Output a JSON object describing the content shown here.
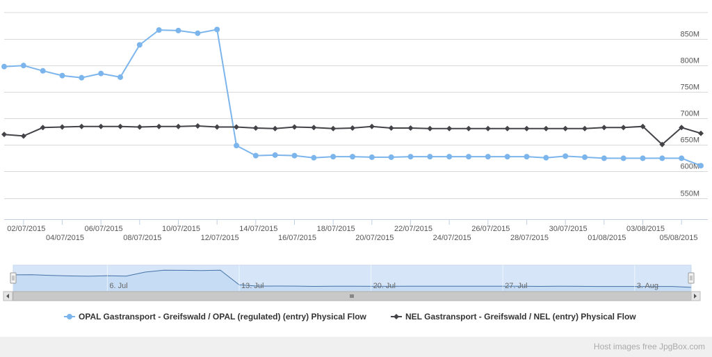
{
  "chart_data": {
    "type": "line",
    "title": "",
    "xlabel": "",
    "ylabel": "",
    "x": [
      "01/07/2015",
      "02/07/2015",
      "03/07/2015",
      "04/07/2015",
      "05/07/2015",
      "06/07/2015",
      "07/07/2015",
      "08/07/2015",
      "09/07/2015",
      "10/07/2015",
      "11/07/2015",
      "12/07/2015",
      "13/07/2015",
      "14/07/2015",
      "15/07/2015",
      "16/07/2015",
      "17/07/2015",
      "18/07/2015",
      "19/07/2015",
      "20/07/2015",
      "21/07/2015",
      "22/07/2015",
      "23/07/2015",
      "24/07/2015",
      "25/07/2015",
      "26/07/2015",
      "27/07/2015",
      "28/07/2015",
      "29/07/2015",
      "30/07/2015",
      "31/07/2015",
      "01/08/2015",
      "02/08/2015",
      "03/08/2015",
      "04/08/2015",
      "05/08/2015",
      "06/08/2015"
    ],
    "x_tick_labels_top": [
      "02/07/2015",
      "06/07/2015",
      "10/07/2015",
      "14/07/2015",
      "18/07/2015",
      "22/07/2015",
      "26/07/2015",
      "30/07/2015",
      "03/08/2015"
    ],
    "x_tick_labels_bottom": [
      "04/07/2015",
      "08/07/2015",
      "12/07/2015",
      "16/07/2015",
      "20/07/2015",
      "24/07/2015",
      "28/07/2015",
      "01/08/2015",
      "05/08/2015"
    ],
    "y_ticks": [
      "550M",
      "600M",
      "650M",
      "700M",
      "750M",
      "800M",
      "850M"
    ],
    "ylim": [
      510,
      900
    ],
    "grid": true,
    "legend_position": "bottom-center",
    "series": [
      {
        "name": "OPAL Gastransport - Greifswald / OPAL (regulated) (entry) Physical Flow",
        "color": "#7cb5ec",
        "marker": "circle",
        "values": [
          798,
          800,
          790,
          781,
          777,
          785,
          778,
          839,
          867,
          866,
          861,
          868,
          649,
          630,
          631,
          630,
          626,
          628,
          628,
          627,
          627,
          628,
          628,
          628,
          628,
          628,
          628,
          628,
          626,
          629,
          627,
          625,
          625,
          625,
          625,
          625,
          611
        ]
      },
      {
        "name": "NEL Gastransport - Greifswald / NEL (entry) Physical Flow",
        "color": "#434348",
        "marker": "diamond",
        "values": [
          670,
          667,
          683,
          684,
          685,
          685,
          685,
          684,
          685,
          685,
          686,
          684,
          684,
          682,
          681,
          684,
          683,
          681,
          682,
          685,
          682,
          682,
          681,
          681,
          681,
          681,
          681,
          681,
          681,
          681,
          681,
          683,
          683,
          685,
          651,
          683,
          672
        ]
      }
    ],
    "navigator": {
      "labels": [
        "6. Jul",
        "13. Jul",
        "20. Jul",
        "27. Jul",
        "3. Aug"
      ]
    }
  },
  "footer": {
    "text": "Host images free JpgBox.com"
  }
}
